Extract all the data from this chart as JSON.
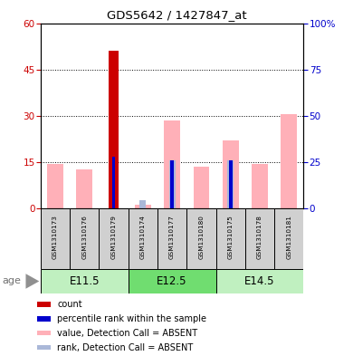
{
  "title": "GDS5642 / 1427847_at",
  "samples": [
    "GSM1310173",
    "GSM1310176",
    "GSM1310179",
    "GSM1310174",
    "GSM1310177",
    "GSM1310180",
    "GSM1310175",
    "GSM1310178",
    "GSM1310181"
  ],
  "group_configs": [
    {
      "label": "E11.5",
      "start": 0,
      "end": 2
    },
    {
      "label": "E12.5",
      "start": 3,
      "end": 5
    },
    {
      "label": "E14.5",
      "start": 6,
      "end": 8
    }
  ],
  "count_values": [
    0,
    0,
    51,
    0,
    0,
    0,
    0,
    0,
    0
  ],
  "percentile_pct": [
    0,
    0,
    28,
    0,
    26,
    0,
    26,
    0,
    0
  ],
  "value_absent": [
    14.5,
    12.5,
    0,
    1.2,
    28.5,
    13.5,
    22,
    14.5,
    30.5
  ],
  "rank_absent_pct": [
    0,
    0,
    0,
    4.5,
    26,
    0,
    26,
    0,
    0
  ],
  "ylim_left": [
    0,
    60
  ],
  "ylim_right": [
    0,
    100
  ],
  "yticks_left": [
    0,
    15,
    30,
    45,
    60
  ],
  "yticks_right": [
    0,
    25,
    50,
    75,
    100
  ],
  "yticklabels_right": [
    "0",
    "25",
    "50",
    "75",
    "100%"
  ],
  "left_color": "#cc0000",
  "right_color": "#0000cc",
  "value_absent_color": "#ffb0b8",
  "rank_absent_color": "#aab8d8",
  "count_color": "#cc0000",
  "percentile_color": "#0000cc",
  "sample_box_color": "#d0d0d0",
  "group_color_light": "#c0f0c0",
  "group_color_dark": "#70dd70",
  "age_label": "age",
  "legend_items": [
    {
      "color": "#cc0000",
      "label": "count"
    },
    {
      "color": "#0000cc",
      "label": "percentile rank within the sample"
    },
    {
      "color": "#ffb0b8",
      "label": "value, Detection Call = ABSENT"
    },
    {
      "color": "#aab8d8",
      "label": "rank, Detection Call = ABSENT"
    }
  ]
}
